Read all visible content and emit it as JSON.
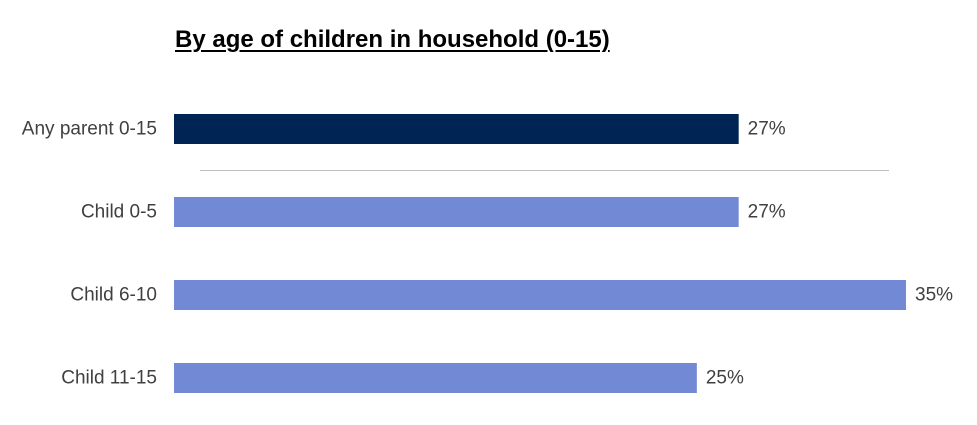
{
  "chart_data": {
    "type": "bar",
    "orientation": "horizontal",
    "title": "By age of children in household (0-15)",
    "categories": [
      "Any parent 0-15",
      "Child 0-5",
      "Child 6-10",
      "Child 11-15"
    ],
    "values": [
      27,
      27,
      35,
      25
    ],
    "value_labels": [
      "27%",
      "27%",
      "35%",
      "25%"
    ],
    "unit": "%",
    "xlim": [
      0,
      35
    ],
    "grid": false,
    "legend": "none",
    "bar_colors": [
      "#002454",
      "#7289d6",
      "#7289d6",
      "#7289d6"
    ],
    "separator_after_first": true,
    "separator_color": "#bfbfbf"
  }
}
